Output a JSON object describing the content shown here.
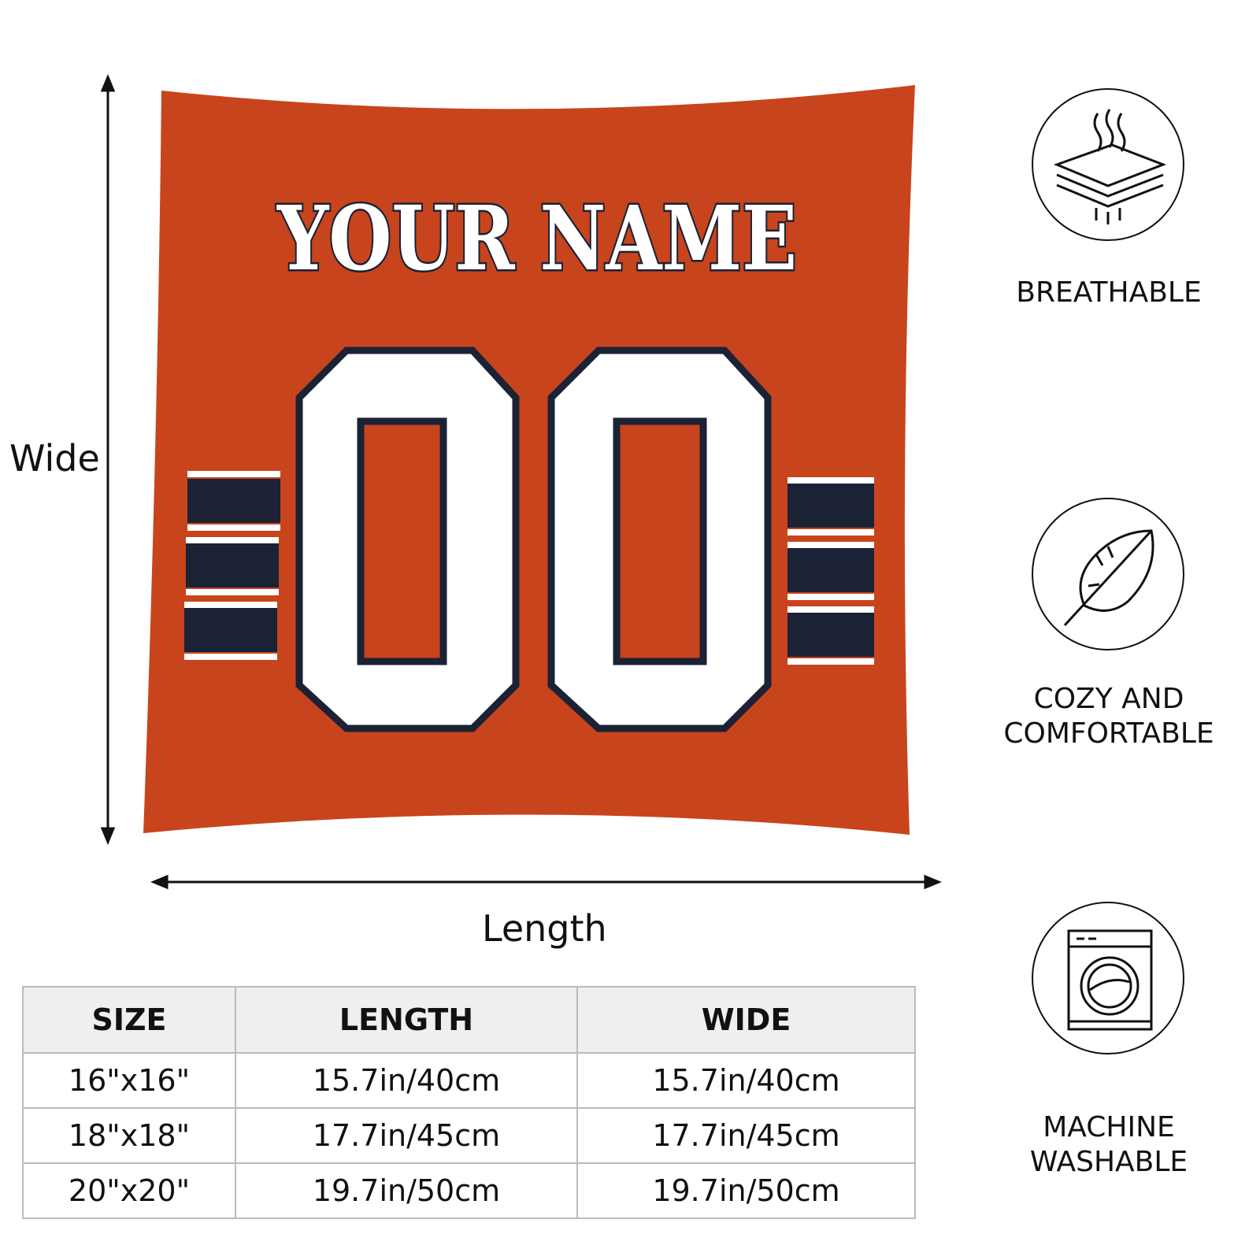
{
  "product": {
    "name_text": "YOUR NAME",
    "number_text": "00",
    "colors": {
      "base": "#C8441C",
      "stripe": "#1B2235",
      "letter": "#FFFFFF",
      "outline": "#1B2235"
    }
  },
  "dimensions": {
    "vertical_label": "Wide",
    "horizontal_label": "Length"
  },
  "features": [
    {
      "icon": "breathable-layers-icon",
      "label": "BREATHABLE"
    },
    {
      "icon": "feather-icon",
      "label": "COZY AND COMFORTABLE"
    },
    {
      "icon": "washing-machine-icon",
      "label": "MACHINE WASHABLE"
    }
  ],
  "size_table": {
    "headers": [
      "SIZE",
      "LENGTH",
      "WIDE"
    ],
    "rows": [
      [
        "16\"x16\"",
        "15.7in/40cm",
        "15.7in/40cm"
      ],
      [
        "18\"x18\"",
        "17.7in/45cm",
        "17.7in/45cm"
      ],
      [
        "20\"x20\"",
        "19.7in/50cm",
        "19.7in/50cm"
      ]
    ]
  }
}
